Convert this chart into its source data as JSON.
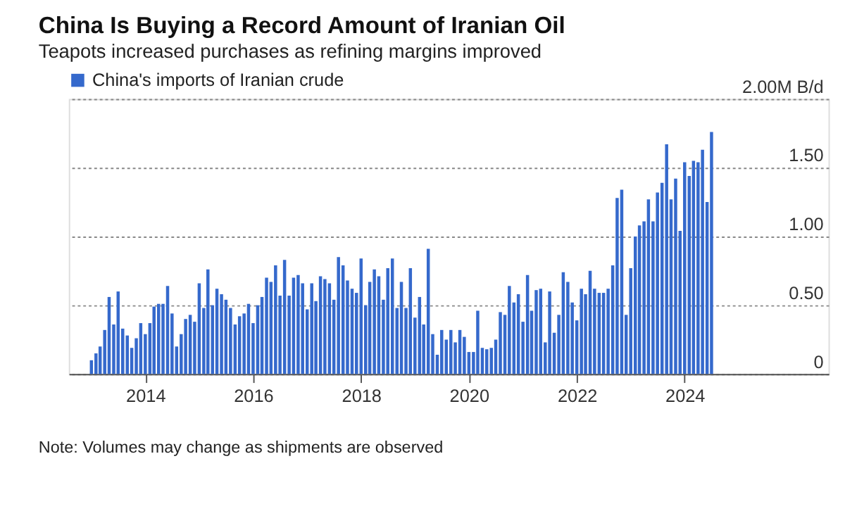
{
  "chart_data": {
    "type": "bar",
    "title": "China Is Buying a Record Amount of Iranian Oil",
    "subtitle": "Teapots increased purchases as refining margins improved",
    "annotations": [
      "Note: Volumes may change as shipments are observed"
    ],
    "x": [
      "2013-01",
      "2013-02",
      "2013-03",
      "2013-04",
      "2013-05",
      "2013-06",
      "2013-07",
      "2013-08",
      "2013-09",
      "2013-10",
      "2013-11",
      "2013-12",
      "2014-01",
      "2014-02",
      "2014-03",
      "2014-04",
      "2014-05",
      "2014-06",
      "2014-07",
      "2014-08",
      "2014-09",
      "2014-10",
      "2014-11",
      "2014-12",
      "2015-01",
      "2015-02",
      "2015-03",
      "2015-04",
      "2015-05",
      "2015-06",
      "2015-07",
      "2015-08",
      "2015-09",
      "2015-10",
      "2015-11",
      "2015-12",
      "2016-01",
      "2016-02",
      "2016-03",
      "2016-04",
      "2016-05",
      "2016-06",
      "2016-07",
      "2016-08",
      "2016-09",
      "2016-10",
      "2016-11",
      "2016-12",
      "2017-01",
      "2017-02",
      "2017-03",
      "2017-04",
      "2017-05",
      "2017-06",
      "2017-07",
      "2017-08",
      "2017-09",
      "2017-10",
      "2017-11",
      "2017-12",
      "2018-01",
      "2018-02",
      "2018-03",
      "2018-04",
      "2018-05",
      "2018-06",
      "2018-07",
      "2018-08",
      "2018-09",
      "2018-10",
      "2018-11",
      "2018-12",
      "2019-01",
      "2019-02",
      "2019-03",
      "2019-04",
      "2019-05",
      "2019-06",
      "2019-07",
      "2019-08",
      "2019-09",
      "2019-10",
      "2019-11",
      "2019-12",
      "2020-01",
      "2020-02",
      "2020-03",
      "2020-04",
      "2020-05",
      "2020-06",
      "2020-07",
      "2020-08",
      "2020-09",
      "2020-10",
      "2020-11",
      "2020-12",
      "2021-01",
      "2021-02",
      "2021-03",
      "2021-04",
      "2021-05",
      "2021-06",
      "2021-07",
      "2021-08",
      "2021-09",
      "2021-10",
      "2021-11",
      "2021-12",
      "2022-01",
      "2022-02",
      "2022-03",
      "2022-04",
      "2022-05",
      "2022-06",
      "2022-07",
      "2022-08",
      "2022-09",
      "2022-10",
      "2022-11",
      "2022-12",
      "2023-01",
      "2023-02",
      "2023-03",
      "2023-04",
      "2023-05",
      "2023-06",
      "2023-07",
      "2023-08",
      "2023-09",
      "2023-10",
      "2023-11",
      "2023-12",
      "2024-01",
      "2024-02",
      "2024-03",
      "2024-04",
      "2024-05",
      "2024-06",
      "2024-07"
    ],
    "series": [
      {
        "name": "China's imports of Iranian crude",
        "color": "#3569cc",
        "values": [
          0.1,
          0.15,
          0.2,
          0.32,
          0.56,
          0.36,
          0.6,
          0.33,
          0.28,
          0.19,
          0.26,
          0.37,
          0.29,
          0.37,
          0.49,
          0.51,
          0.51,
          0.64,
          0.44,
          0.2,
          0.29,
          0.4,
          0.43,
          0.38,
          0.66,
          0.48,
          0.76,
          0.5,
          0.62,
          0.58,
          0.54,
          0.48,
          0.36,
          0.42,
          0.44,
          0.51,
          0.37,
          0.5,
          0.56,
          0.7,
          0.67,
          0.79,
          0.57,
          0.83,
          0.57,
          0.7,
          0.72,
          0.66,
          0.47,
          0.66,
          0.53,
          0.71,
          0.69,
          0.66,
          0.54,
          0.85,
          0.79,
          0.68,
          0.62,
          0.59,
          0.84,
          0.5,
          0.67,
          0.76,
          0.71,
          0.54,
          0.77,
          0.84,
          0.48,
          0.67,
          0.48,
          0.77,
          0.41,
          0.56,
          0.36,
          0.91,
          0.29,
          0.14,
          0.32,
          0.25,
          0.32,
          0.23,
          0.32,
          0.27,
          0.16,
          0.16,
          0.46,
          0.19,
          0.18,
          0.19,
          0.25,
          0.45,
          0.43,
          0.64,
          0.52,
          0.58,
          0.38,
          0.72,
          0.46,
          0.61,
          0.62,
          0.23,
          0.6,
          0.3,
          0.43,
          0.74,
          0.67,
          0.52,
          0.39,
          0.62,
          0.58,
          0.75,
          0.62,
          0.59,
          0.59,
          0.62,
          0.79,
          1.28,
          1.34,
          0.43,
          0.77,
          1.0,
          1.08,
          1.11,
          1.27,
          1.11,
          1.32,
          1.39,
          1.67,
          1.27,
          1.42,
          1.04,
          1.54,
          1.44,
          1.55,
          1.54,
          1.63,
          1.25,
          1.76
        ]
      }
    ],
    "xlim": [
      "2012-08",
      "2026-09"
    ],
    "xticks": [
      {
        "value": "2014-01",
        "label": "2014"
      },
      {
        "value": "2016-01",
        "label": "2016"
      },
      {
        "value": "2018-01",
        "label": "2018"
      },
      {
        "value": "2020-01",
        "label": "2020"
      },
      {
        "value": "2022-01",
        "label": "2022"
      },
      {
        "value": "2024-01",
        "label": "2024"
      }
    ],
    "ylim": [
      0,
      2
    ],
    "yticks": [
      0,
      {
        "value": 0.5,
        "label": "0.50"
      },
      {
        "value": 1,
        "label": "1.00"
      },
      {
        "value": 1.5,
        "label": "1.50"
      },
      {
        "value": 2,
        "label": "2.00M B/d"
      }
    ],
    "grid": "y",
    "legend": "top left"
  }
}
